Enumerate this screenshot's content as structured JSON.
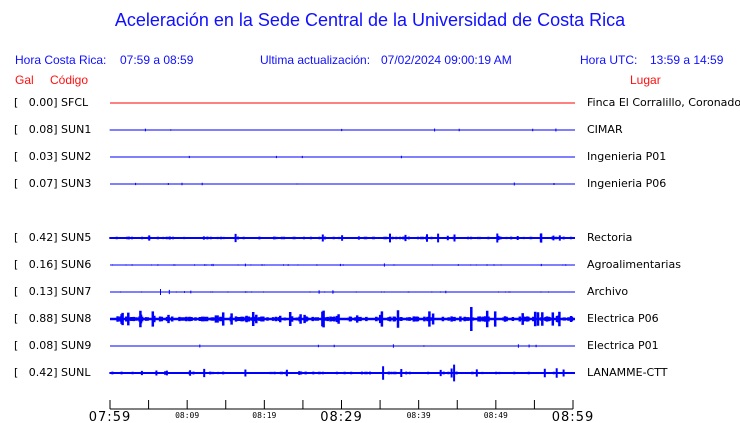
{
  "title": "Aceleración en la Sede Central de la Universidad de Costa Rica",
  "header": {
    "cr_label": "Hora Costa Rica:",
    "cr_range": "07:59 a 08:59",
    "update_label": "Ultima actualización:",
    "update_value": "07/02/2024 09:00:19 AM",
    "utc_label": "Hora UTC:",
    "utc_range": "13:59 a 14:59"
  },
  "columns": {
    "gal": "Gal",
    "code": "Código",
    "place": "Lugar"
  },
  "colors": {
    "header": "#1010ff",
    "trace": "#0000ff",
    "trace_zero": "#ff0000",
    "column_headers": "#ff1010"
  },
  "stations": [
    {
      "label": "[   0.00] SFCL",
      "gal": 0.0,
      "place": "Finca El Corralillo, Coronado"
    },
    {
      "label": "[   0.08] SUN1",
      "gal": 0.08,
      "place": "CIMAR"
    },
    {
      "label": "[   0.03] SUN2",
      "gal": 0.03,
      "place": "Ingenieria P01"
    },
    {
      "label": "[   0.07] SUN3",
      "gal": 0.07,
      "place": "Ingenieria P06"
    },
    {
      "label": "[   0.42] SUN5",
      "gal": 0.42,
      "place": "Rectoria"
    },
    {
      "label": "[   0.16] SUN6",
      "gal": 0.16,
      "place": "Agroalimentarias"
    },
    {
      "label": "[   0.13] SUN7",
      "gal": 0.13,
      "place": "Archivo"
    },
    {
      "label": "[   0.88] SUN8",
      "gal": 0.88,
      "place": "Electrica P06"
    },
    {
      "label": "[   0.08] SUN9",
      "gal": 0.08,
      "place": "Electrica P01"
    },
    {
      "label": "[   0.42] SUNL",
      "gal": 0.42,
      "place": "LANAMME-CTT"
    }
  ],
  "axis": {
    "ticks": [
      "07:59",
      "08:09",
      "08:19",
      "08:29",
      "08:39",
      "08:49",
      "08:59"
    ]
  }
}
